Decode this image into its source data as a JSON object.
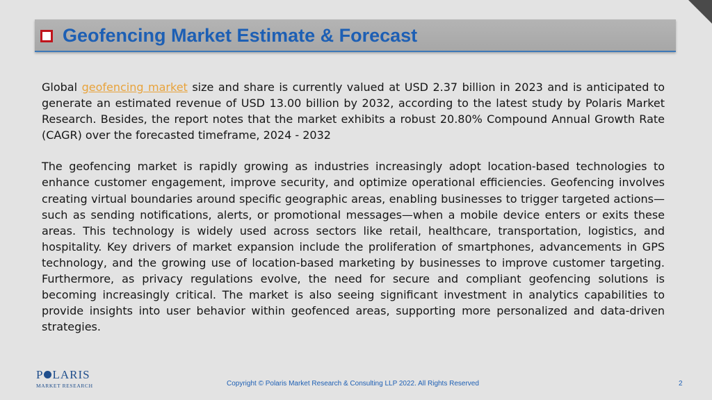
{
  "slide": {
    "title": "Geofencing Market Estimate & Forecast",
    "paragraph1": {
      "prefix": "Global ",
      "link_text": "geofencing market",
      "suffix": " size and share is currently valued at USD 2.37 billion in 2023 and is anticipated to generate an estimated revenue of USD 13.00 billion by 2032, according to the latest study by Polaris Market Research. Besides, the report notes that the market exhibits a robust 20.80% Compound Annual Growth Rate (CAGR) over the forecasted timeframe, 2024 - 2032"
    },
    "paragraph2": "The geofencing market is rapidly growing as industries increasingly adopt location-based technologies to enhance customer engagement, improve security, and optimize operational efficiencies. Geofencing involves creating virtual boundaries around specific geographic areas, enabling businesses to trigger targeted actions—such as sending notifications, alerts, or promotional messages—when a mobile device enters or exits these areas. This technology is widely used across sectors like retail, healthcare, transportation, logistics, and hospitality. Key drivers of market expansion include the proliferation of smartphones, advancements in GPS technology, and the growing use of location-based marketing by businesses to improve customer targeting. Furthermore, as privacy regulations evolve, the need for secure and compliant geofencing solutions is becoming increasingly critical. The market is also seeing significant investment in analytics capabilities to provide insights into user behavior within geofenced areas, supporting more personalized and data-driven strategies."
  },
  "footer": {
    "logo_main_1": "P",
    "logo_main_2": "LARIS",
    "logo_sub": "MARKET RESEARCH",
    "copyright": "Copyright © Polaris Market Research & Consulting LLP 2022. All Rights Reserved",
    "page_number": "2"
  },
  "colors": {
    "title": "#1d5fb4",
    "link": "#e8a33b",
    "bullet": "#c0141b",
    "background": "#e3e3e3"
  }
}
